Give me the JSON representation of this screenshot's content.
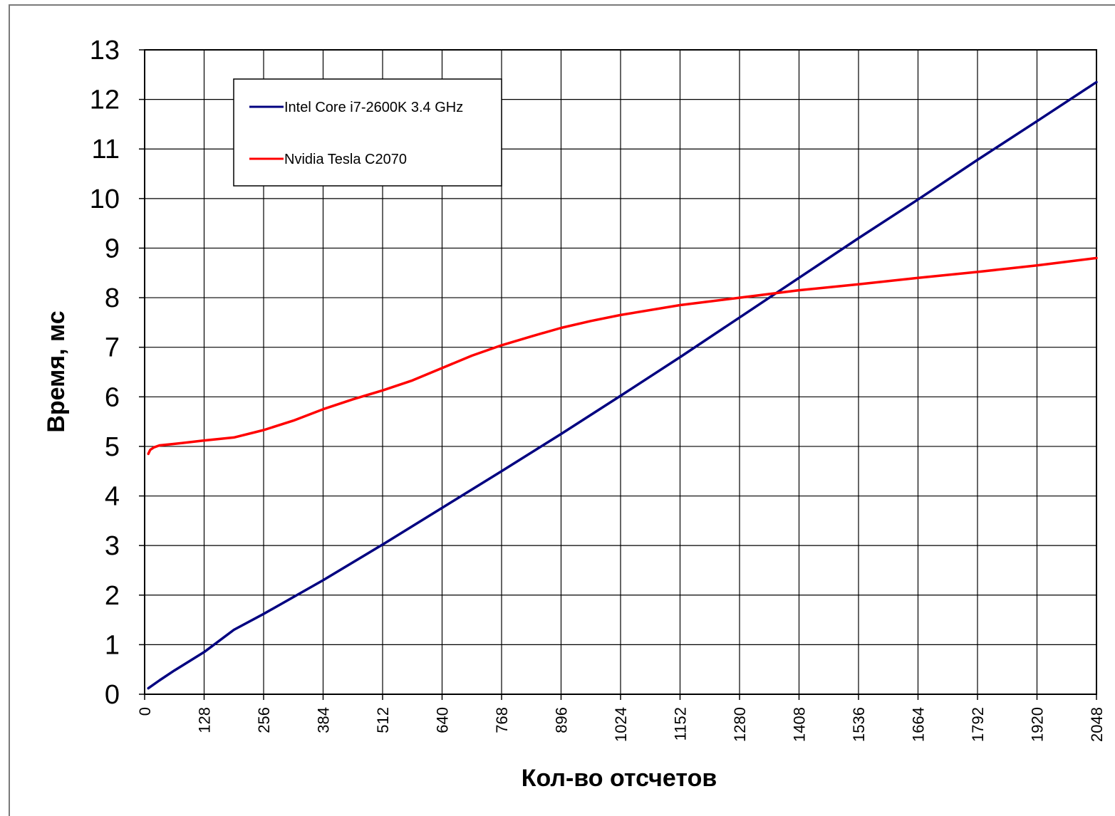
{
  "chart_data": {
    "type": "line",
    "title": "",
    "xlabel": "Кол-во отсчетов",
    "ylabel": "Время, мс",
    "xlim": [
      0,
      2048
    ],
    "ylim": [
      0,
      13
    ],
    "x_ticks": [
      0,
      128,
      256,
      384,
      512,
      640,
      768,
      896,
      1024,
      1152,
      1280,
      1408,
      1536,
      1664,
      1792,
      1920,
      2048
    ],
    "y_ticks": [
      0,
      1,
      2,
      3,
      4,
      5,
      6,
      7,
      8,
      9,
      10,
      11,
      12,
      13
    ],
    "grid": true,
    "legend_position": "top-left",
    "series": [
      {
        "name": "Intel Core i7-2600K 3.4 GHz",
        "color": "#000080",
        "points": [
          [
            8,
            0.12
          ],
          [
            32,
            0.28
          ],
          [
            64,
            0.48
          ],
          [
            128,
            0.85
          ],
          [
            192,
            1.3
          ],
          [
            256,
            1.62
          ],
          [
            384,
            2.3
          ],
          [
            512,
            3.02
          ],
          [
            640,
            3.76
          ],
          [
            768,
            4.5
          ],
          [
            896,
            5.25
          ],
          [
            1024,
            6.02
          ],
          [
            1152,
            6.8
          ],
          [
            1280,
            7.6
          ],
          [
            1408,
            8.4
          ],
          [
            1536,
            9.2
          ],
          [
            1664,
            9.98
          ],
          [
            1792,
            10.78
          ],
          [
            1920,
            11.56
          ],
          [
            2048,
            12.35
          ]
        ]
      },
      {
        "name": "Nvidia Tesla C2070",
        "color": "#ff0000",
        "points": [
          [
            8,
            4.85
          ],
          [
            12,
            4.93
          ],
          [
            20,
            4.98
          ],
          [
            32,
            5.02
          ],
          [
            64,
            5.05
          ],
          [
            128,
            5.12
          ],
          [
            192,
            5.18
          ],
          [
            256,
            5.33
          ],
          [
            320,
            5.52
          ],
          [
            384,
            5.75
          ],
          [
            448,
            5.95
          ],
          [
            512,
            6.13
          ],
          [
            576,
            6.33
          ],
          [
            640,
            6.58
          ],
          [
            704,
            6.83
          ],
          [
            768,
            7.04
          ],
          [
            832,
            7.22
          ],
          [
            896,
            7.39
          ],
          [
            960,
            7.53
          ],
          [
            1024,
            7.65
          ],
          [
            1152,
            7.85
          ],
          [
            1280,
            8.0
          ],
          [
            1408,
            8.15
          ],
          [
            1536,
            8.27
          ],
          [
            1664,
            8.4
          ],
          [
            1792,
            8.52
          ],
          [
            1920,
            8.65
          ],
          [
            2048,
            8.8
          ]
        ]
      }
    ]
  }
}
